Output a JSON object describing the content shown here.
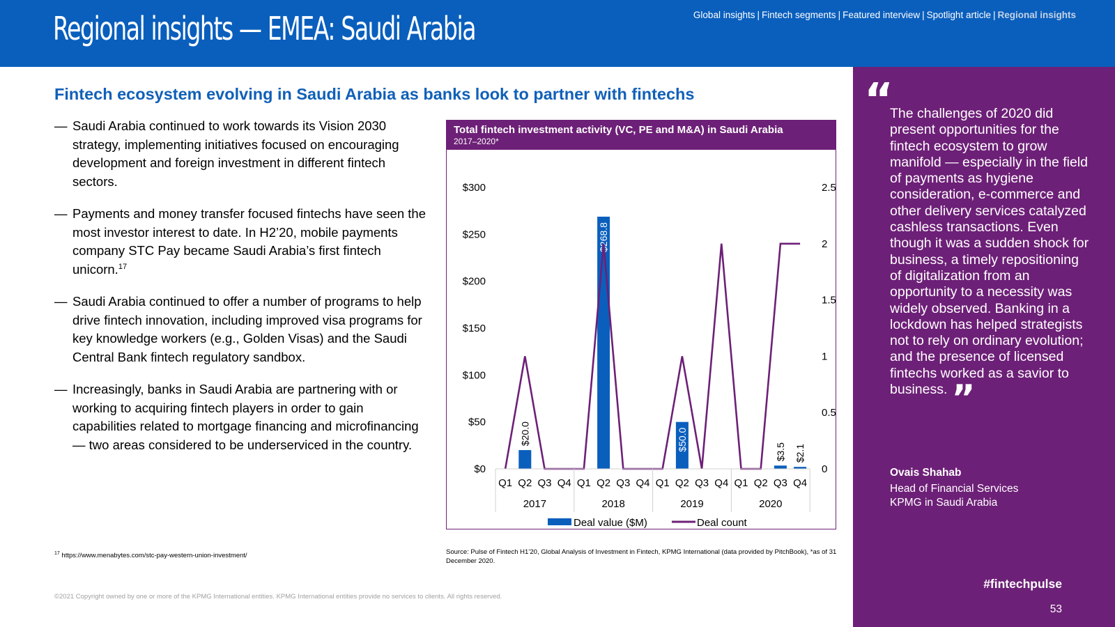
{
  "header": {
    "title": "Regional insights — EMEA: Saudi Arabia",
    "nav": [
      "Global insights",
      "Fintech segments",
      "Featured interview",
      "Spotlight article",
      "Regional insights"
    ],
    "nav_separator": "|",
    "active_nav": "Regional insights"
  },
  "headline": "Fintech ecosystem evolving in Saudi Arabia as banks look to partner with fintechs",
  "bullet_dash": "—",
  "bullets": [
    {
      "text": "Saudi Arabia continued to work towards its Vision 2030 strategy, implementing initiatives focused on encouraging development and foreign investment in different fintech sectors."
    },
    {
      "text": "Payments and money transfer focused fintechs have seen the most investor interest to date. In H2’20, mobile payments company STC Pay became Saudi Arabia’s first fintech unicorn.",
      "sup": "17"
    },
    {
      "text": "Saudi Arabia continued to offer a number of programs to help drive fintech innovation, including improved visa programs for key knowledge workers (e.g., Golden Visas) and the Saudi Central Bank fintech regulatory sandbox."
    },
    {
      "text": "Increasingly, banks in Saudi Arabia are partnering with or working to acquiring fintech players in order to gain capabilities related to mortgage financing and microfinancing — two areas considered to be underserviced in the country."
    }
  ],
  "chart_data": {
    "type": "bar",
    "title": "Total fintech investment activity (VC, PE and M&A) in Saudi Arabia",
    "subtitle": "2017–2020*",
    "categories": [
      "Q1",
      "Q2",
      "Q3",
      "Q4",
      "Q1",
      "Q2",
      "Q3",
      "Q4",
      "Q1",
      "Q2",
      "Q3",
      "Q4",
      "Q1",
      "Q2",
      "Q3",
      "Q4"
    ],
    "groups": [
      {
        "label": "2017",
        "span": 4
      },
      {
        "label": "2018",
        "span": 4
      },
      {
        "label": "2019",
        "span": 4
      },
      {
        "label": "2020",
        "span": 4
      }
    ],
    "series": [
      {
        "name": "Deal value ($M)",
        "type": "bar",
        "axis": "left",
        "color": "#0A5FBD",
        "values": [
          0,
          20.0,
          0,
          0,
          0,
          268.8,
          0,
          0,
          0,
          50.0,
          0,
          0,
          0,
          0,
          3.5,
          2.1
        ]
      },
      {
        "name": "Deal count",
        "type": "line",
        "axis": "right",
        "color": "#6D2077",
        "values": [
          0,
          1,
          0,
          0,
          0,
          2,
          0,
          0,
          0,
          1,
          0,
          2,
          0,
          0,
          2,
          2
        ]
      }
    ],
    "bar_labels": [
      {
        "index": 1,
        "text": "$20.0"
      },
      {
        "index": 5,
        "text": "$268.8"
      },
      {
        "index": 9,
        "text": "$50.0"
      },
      {
        "index": 14,
        "text": "$3.5"
      },
      {
        "index": 15,
        "text": "$2.1"
      }
    ],
    "ylim_left": [
      0,
      300
    ],
    "yticks_left": [
      0,
      50,
      100,
      150,
      200,
      250,
      300
    ],
    "ytick_labels_left": [
      "$0",
      "$50",
      "$100",
      "$150",
      "$200",
      "$250",
      "$300"
    ],
    "ylim_right": [
      0,
      2.5
    ],
    "yticks_right": [
      0,
      0.5,
      1,
      1.5,
      2,
      2.5
    ],
    "ytick_labels_right": [
      "0",
      "0.5",
      "1",
      "1.5",
      "2",
      "2.5"
    ],
    "grid": false,
    "legend_position": "bottom"
  },
  "source_note": "Source: Pulse of Fintech H1’20, Global Analysis of Investment in Fintech, KPMG International (data provided by PitchBook), *as of 31 December 2020.",
  "footnote": {
    "marker": "17",
    "text": " https://www.menabytes.com/stc-pay-western-union-investment/"
  },
  "copyright": "©2021 Copyright owned by one or more of the KPMG International entities. KPMG International entities provide no services to clients. All rights reserved.",
  "quote": {
    "open_mark": "“",
    "close_mark": "”",
    "text": "The challenges of 2020 did present opportunities for the fintech ecosystem to grow manifold — especially in the field of payments as hygiene consideration, e-commerce and other delivery services catalyzed cashless transactions. Even though it was a sudden shock for business, a timely repositioning of digitalization from an opportunity to a necessity was widely observed. Banking in a lockdown has helped strategists not to rely on ordinary evolution; and the presence of licensed fintechs worked as a savior to business.",
    "author": "Ovais Shahab",
    "role_line1": "Head of Financial Services",
    "role_line2": "KPMG in Saudi Arabia"
  },
  "hashtag": "#fintechpulse",
  "page_number": "53",
  "colors": {
    "brand_blue": "#0A5FBD",
    "purple": "#6D2077",
    "headline_blue": "#1060B8",
    "nav_active": "#C4D2E4"
  }
}
